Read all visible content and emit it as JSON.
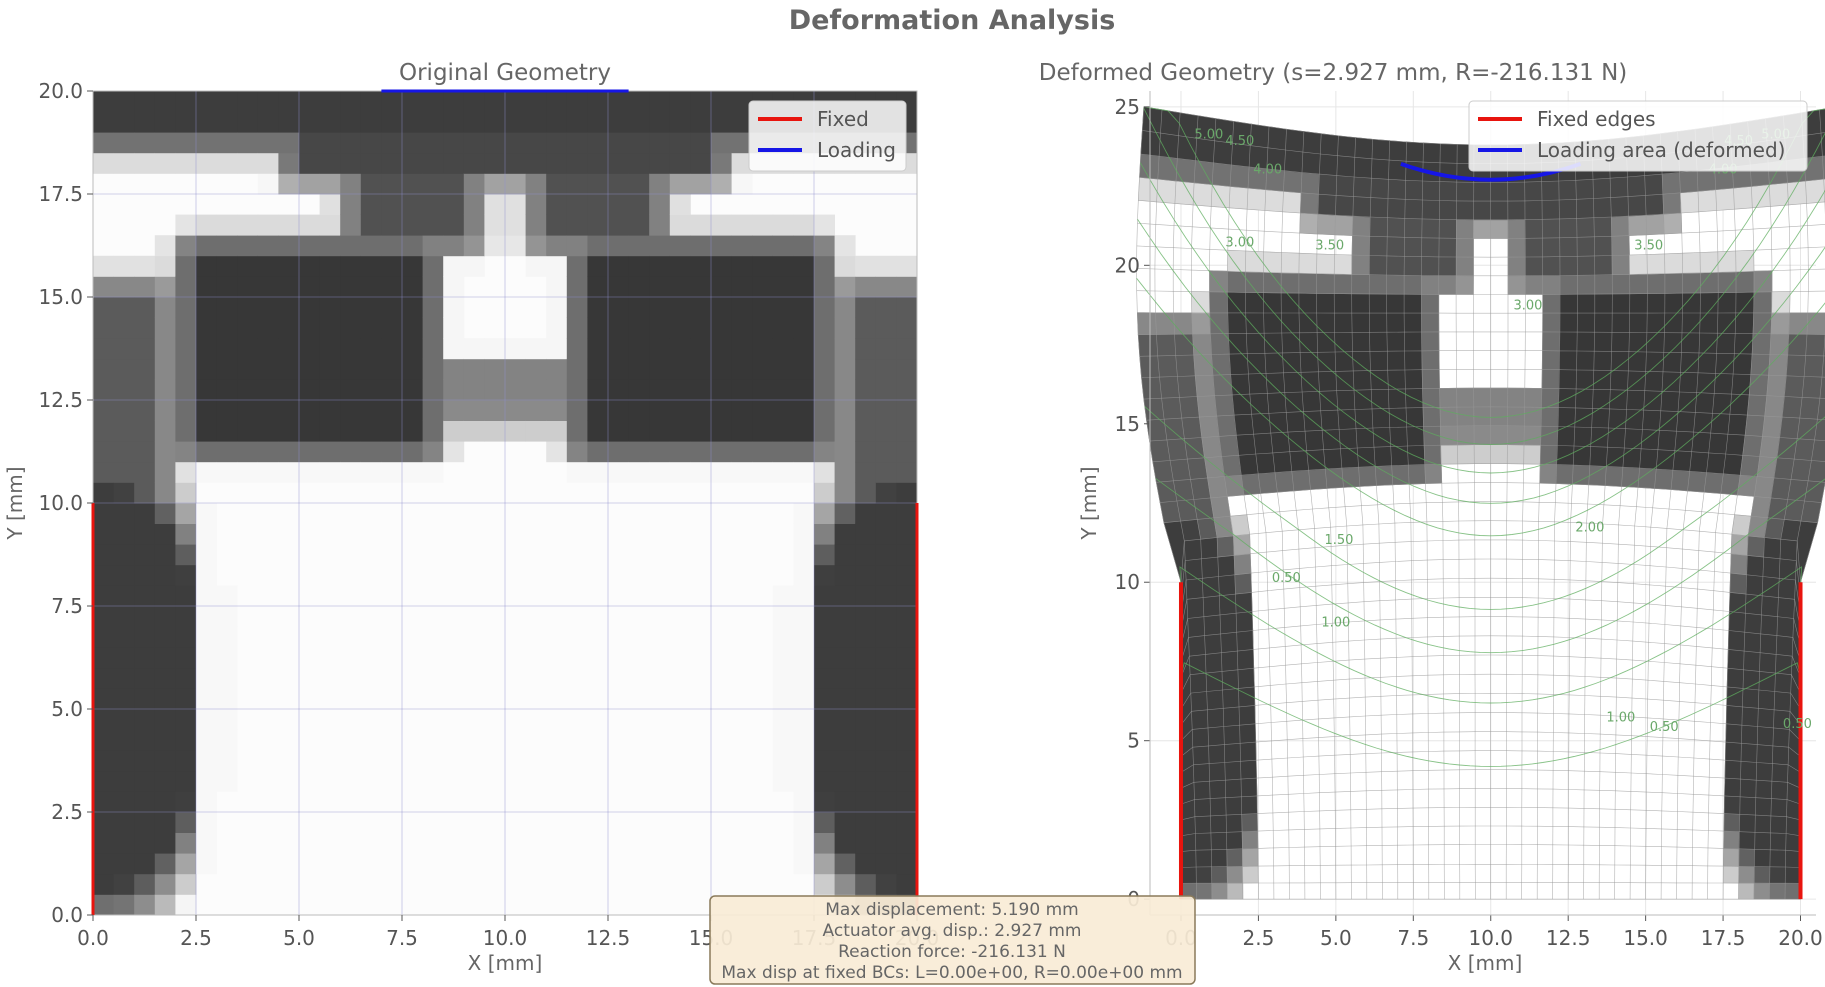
{
  "figure": {
    "suptitle": "Deformation Analysis"
  },
  "colors": {
    "fixed": "#e8140e",
    "loading": "#1616e6",
    "contour": "#5fae5f",
    "dark": "#333333",
    "info_bg": "#f8ecd6",
    "info_border": "#8a7a5a"
  },
  "chart_data": [
    {
      "type": "heatmap",
      "title": "Original Geometry",
      "xlabel": "X [mm]",
      "ylabel": "Y [mm]",
      "xlim": [
        0,
        20
      ],
      "ylim": [
        0,
        20
      ],
      "xticks": [
        "0.0",
        "2.5",
        "5.0",
        "7.5",
        "10.0",
        "12.5",
        "15.0",
        "17.5",
        "20.0"
      ],
      "yticks": [
        "0.0",
        "2.5",
        "5.0",
        "7.5",
        "10.0",
        "12.5",
        "15.0",
        "17.5",
        "20.0"
      ],
      "grid": true,
      "nelx": 40,
      "nely": 40,
      "legend": [
        {
          "label": "Fixed",
          "color": "#e8140e"
        },
        {
          "label": "Loading",
          "color": "#1616e6"
        }
      ],
      "legend_location": "top-right",
      "fixed_edges": [
        {
          "x": 0,
          "y0": 0,
          "y1": 10
        },
        {
          "x": 20,
          "y0": 0,
          "y1": 10
        }
      ],
      "loading_edge": {
        "y": 20,
        "x0": 7,
        "x1": 13
      },
      "density_regions": [
        {
          "shape": "band",
          "y0": 19,
          "y1": 20,
          "x0": 0,
          "x1": 20,
          "density": 0.95
        },
        {
          "shape": "band",
          "y0": 18.2,
          "y1": 19.2,
          "x0": 5,
          "x1": 15,
          "density": 0.9
        },
        {
          "shape": "band",
          "y0": 16.5,
          "y1": 18.5,
          "x0": 6.5,
          "x1": 9,
          "density": 0.85
        },
        {
          "shape": "band",
          "y0": 16.5,
          "y1": 18.5,
          "x0": 11,
          "x1": 13.5,
          "density": 0.85
        },
        {
          "shape": "band",
          "y0": 11.5,
          "y1": 16,
          "x0": 2.5,
          "x1": 8,
          "density": 0.98
        },
        {
          "shape": "band",
          "y0": 11.5,
          "y1": 16,
          "x0": 12,
          "x1": 17.5,
          "density": 0.98
        },
        {
          "shape": "band",
          "y0": 12.3,
          "y1": 13.3,
          "x0": 8,
          "x1": 12,
          "density": 0.6
        },
        {
          "shape": "band",
          "y0": 9.5,
          "y1": 15,
          "x0": 0,
          "x1": 1.5,
          "density": 0.8
        },
        {
          "shape": "band",
          "y0": 9.5,
          "y1": 15,
          "x0": 18.5,
          "x1": 20,
          "density": 0.8
        },
        {
          "shape": "ellipse",
          "cx": 0.4,
          "cy": 5.5,
          "rx": 2.5,
          "ry": 5.3,
          "density": 0.95
        },
        {
          "shape": "ellipse",
          "cx": 19.6,
          "cy": 5.5,
          "rx": 2.5,
          "ry": 5.3,
          "density": 0.95
        }
      ]
    },
    {
      "type": "heatmap",
      "title": "Deformed Geometry (s=2.927 mm, R=-216.131 N)",
      "xlabel": "X [mm]",
      "ylabel": "Y [mm]",
      "xlim": [
        -1,
        20.5
      ],
      "ylim": [
        -0.5,
        25.5
      ],
      "xticks": [
        "0.0",
        "2.5",
        "5.0",
        "7.5",
        "10.0",
        "12.5",
        "15.0",
        "17.5",
        "20.0"
      ],
      "yticks": [
        "0",
        "5",
        "10",
        "15",
        "20",
        "25"
      ],
      "grid": true,
      "legend": [
        {
          "label": "Fixed edges",
          "color": "#e8140e"
        },
        {
          "label": "Loading area (deformed)",
          "color": "#1616e6"
        }
      ],
      "legend_location": "top-right",
      "fixed_edges": [
        {
          "x": 0,
          "y0": 0,
          "y1": 10
        },
        {
          "x": 20,
          "y0": 0,
          "y1": 10
        }
      ],
      "loading_arc": {
        "x0": 7.1,
        "x1": 12.9,
        "y_edge": 23.2,
        "y_mid": 22.7
      },
      "contour_labels": [
        {
          "text": "4.50",
          "x": 1.9,
          "y": 23.8
        },
        {
          "text": "4.00",
          "x": 2.8,
          "y": 22.9
        },
        {
          "text": "3.00",
          "x": 1.9,
          "y": 20.6
        },
        {
          "text": "3.50",
          "x": 4.8,
          "y": 20.5
        },
        {
          "text": "3.00",
          "x": 11.2,
          "y": 18.6
        },
        {
          "text": "4.50",
          "x": 18.0,
          "y": 23.8
        },
        {
          "text": "4.00",
          "x": 17.5,
          "y": 22.9
        },
        {
          "text": "3.50",
          "x": 15.1,
          "y": 20.5
        },
        {
          "text": "1.50",
          "x": 5.1,
          "y": 11.2
        },
        {
          "text": "2.00",
          "x": 13.2,
          "y": 11.6
        },
        {
          "text": "0.50",
          "x": 3.4,
          "y": 10.0
        },
        {
          "text": "1.00",
          "x": 5.0,
          "y": 8.6
        },
        {
          "text": "1.00",
          "x": 14.2,
          "y": 5.6
        },
        {
          "text": "0.50",
          "x": 15.6,
          "y": 5.3
        },
        {
          "text": "0.50",
          "x": 19.9,
          "y": 5.4
        },
        {
          "text": "5.00",
          "x": 0.9,
          "y": 24.0
        },
        {
          "text": "5.00",
          "x": 19.2,
          "y": 24.0
        }
      ]
    }
  ],
  "info_box": {
    "line1": "Max displacement: 5.190 mm",
    "line2": "Actuator avg. disp.: 2.927 mm",
    "line3": "Reaction force: -216.131 N",
    "line4": "Max disp at fixed BCs: L=0.00e+00, R=0.00e+00 mm"
  }
}
